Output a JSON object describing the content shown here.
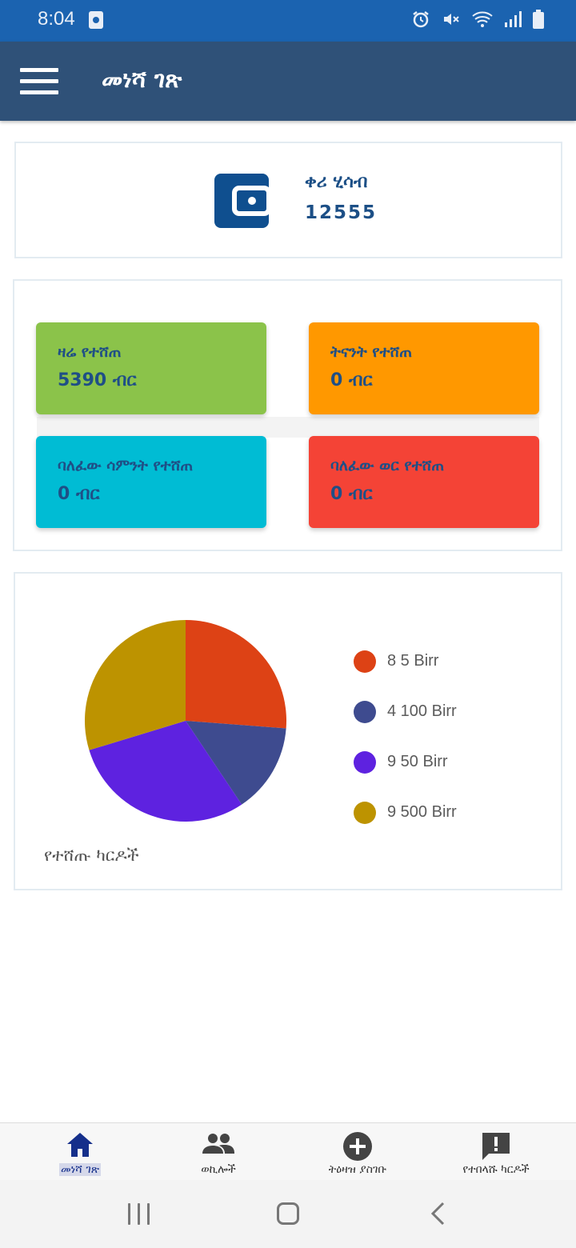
{
  "status_bar": {
    "time": "8:04",
    "icons": [
      "note-icon",
      "alarm-icon",
      "mute-icon",
      "wifi-icon",
      "signal-icon",
      "battery-icon"
    ]
  },
  "app_bar": {
    "title": "መነሻ ገጽ",
    "menu_icon": "menu-icon"
  },
  "balance": {
    "label": "ቀሪ ሂሳብ",
    "value": "12555",
    "icon": "wallet-icon"
  },
  "stats": [
    {
      "label": "ዛሬ የተሸጠ",
      "value": "5390 ብር",
      "color": "#8bc34a"
    },
    {
      "label": "ትናንት የተሸጠ",
      "value": "0 ብር",
      "color": "#ff9800"
    },
    {
      "label": "ባለፈው ሳምንት የተሸጠ",
      "value": "0 ብር",
      "color": "#00bcd4"
    },
    {
      "label": "ባለፈው ወር የተሸጠ",
      "value": "0 ብር",
      "color": "#f44336"
    }
  ],
  "chart_data": {
    "type": "pie",
    "caption": "የተሸጡ ካርዶች",
    "slices": [
      {
        "label": "8 5 Birr",
        "value": 26.2,
        "color": "#dd4215"
      },
      {
        "label": "4 100 Birr",
        "value": 14.4,
        "color": "#3e4b8f"
      },
      {
        "label": "9 50 Birr",
        "value": 29.7,
        "color": "#5e22e0"
      },
      {
        "label": "9 500 Birr",
        "value": 29.7,
        "color": "#bd9300"
      }
    ]
  },
  "bottom_nav": [
    {
      "label": "መነሻ ገጽ",
      "icon": "home-icon",
      "active": true
    },
    {
      "label": "ወኪሎች",
      "icon": "people-icon",
      "active": false
    },
    {
      "label": "ትዕዛዝ ያስገቡ",
      "icon": "add-circle-icon",
      "active": false
    },
    {
      "label": "የተበላሹ ካርዶች",
      "icon": "report-icon",
      "active": false
    }
  ],
  "colors": {
    "status_bar": "#1b63b0",
    "app_bar": "#2f5178",
    "primary_text": "#1f4f86",
    "wallet": "#0f4f8f"
  }
}
